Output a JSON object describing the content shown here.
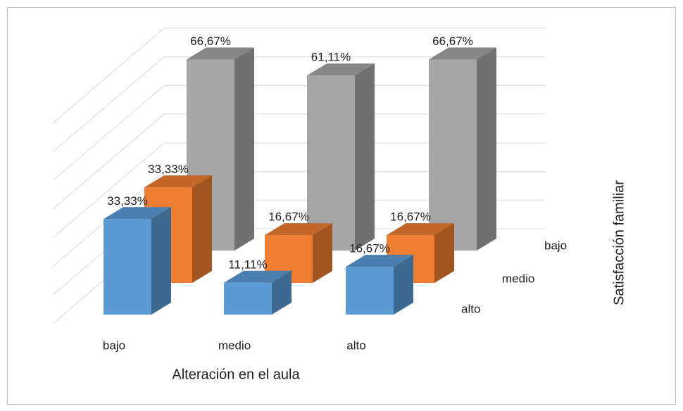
{
  "chart_data": {
    "type": "bar3d",
    "categories": [
      "bajo",
      "medio",
      "alto"
    ],
    "series": [
      {
        "name": "alto",
        "color": "#5b9bd5",
        "values": [
          33.33,
          11.11,
          16.67
        ],
        "value_labels": [
          "33,33%",
          "11,11%",
          "16,67%"
        ]
      },
      {
        "name": "medio",
        "color": "#ed7d31",
        "values": [
          33.33,
          16.67,
          16.67
        ],
        "value_labels": [
          "33,33%",
          "16,67%",
          "16,67%"
        ]
      },
      {
        "name": "bajo",
        "color": "#a5a5a5",
        "values": [
          66.67,
          61.11,
          66.67
        ],
        "value_labels": [
          "66,67%",
          "61,11%",
          "66,67%"
        ]
      }
    ],
    "x_label": "Alteración en el aula",
    "z_label": "Satisfacción familiar",
    "ylim": [
      0,
      70
    ],
    "yticks": [
      0,
      10,
      20,
      30,
      40,
      50,
      60,
      70
    ],
    "grid": true
  }
}
